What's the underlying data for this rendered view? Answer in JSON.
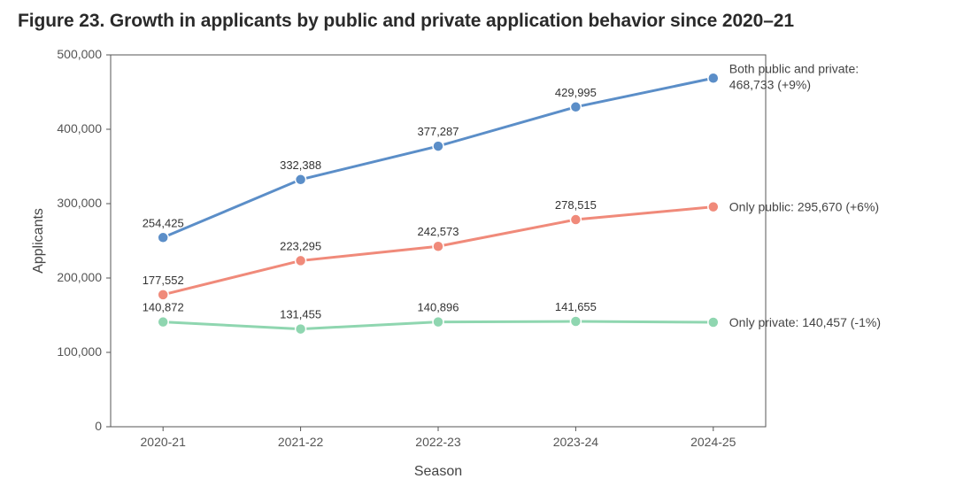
{
  "title": "Figure 23. Growth in applicants by public and private application behavior since 2020–21",
  "chart": {
    "type": "line",
    "xlabel": "Season",
    "ylabel": "Applicants",
    "categories": [
      "2020-21",
      "2021-22",
      "2022-23",
      "2023-24",
      "2024-25"
    ],
    "ylim": [
      0,
      500000
    ],
    "ytick_step": 100000,
    "yticks": [
      "0",
      "100,000",
      "200,000",
      "300,000",
      "400,000",
      "500,000"
    ],
    "background_color": "#ffffff",
    "panel_border_color": "#555555",
    "tick_color": "#555555",
    "label_fontsize": 14,
    "axis_title_fontsize": 16,
    "marker_radius": 6,
    "line_width": 3,
    "series": [
      {
        "name": "Both public and private",
        "color": "#5b8ec8",
        "values": [
          254425,
          332388,
          377287,
          429995,
          468733
        ],
        "data_labels": [
          "254,425",
          "332,388",
          "377,287",
          "429,995",
          ""
        ],
        "end_label_line1": "Both public and private:",
        "end_label_line2": "468,733 (+9%)"
      },
      {
        "name": "Only public",
        "color": "#f08a7a",
        "values": [
          177552,
          223295,
          242573,
          278515,
          295670
        ],
        "data_labels": [
          "177,552",
          "223,295",
          "242,573",
          "278,515",
          ""
        ],
        "end_label_line1": "Only public: 295,670 (+6%)",
        "end_label_line2": ""
      },
      {
        "name": "Only private",
        "color": "#8fd6b0",
        "values": [
          140872,
          131455,
          140896,
          141655,
          140457
        ],
        "data_labels": [
          "140,872",
          "131,455",
          "140,896",
          "141,655",
          ""
        ],
        "end_label_line1": "Only private: 140,457 (-1%)",
        "end_label_line2": ""
      }
    ]
  }
}
